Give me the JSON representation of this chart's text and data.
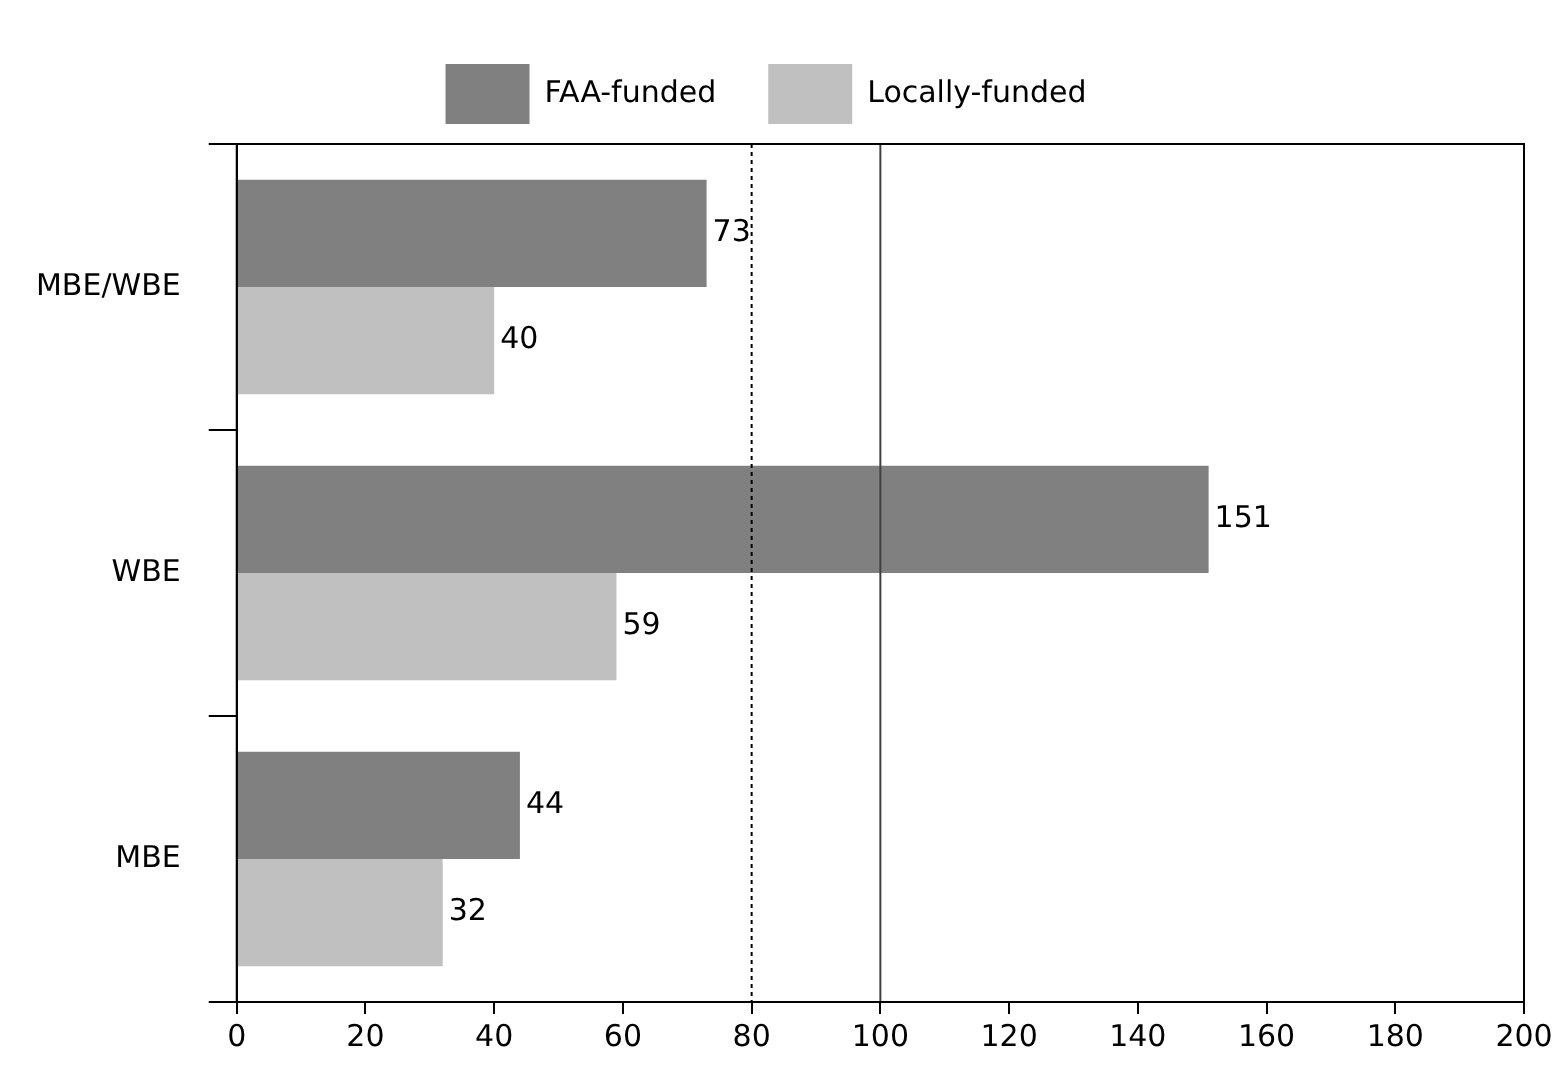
{
  "chart_data": {
    "type": "bar",
    "orientation": "horizontal",
    "categories": [
      "MBE/WBE",
      "WBE",
      "MBE"
    ],
    "series": [
      {
        "name": "FAA-funded",
        "color": "#808080",
        "values": [
          73,
          151,
          44
        ]
      },
      {
        "name": "Locally-funded",
        "color": "#c0c0c0",
        "values": [
          40,
          59,
          32
        ]
      }
    ],
    "xlim": [
      0,
      200
    ],
    "xticks": [
      0,
      20,
      40,
      60,
      80,
      100,
      120,
      140,
      160,
      180,
      200
    ],
    "ref_lines": [
      {
        "axis": "x",
        "value": 80,
        "line_style": "dotted",
        "color": "#000000"
      },
      {
        "axis": "x",
        "value": 100,
        "line_style": "solid",
        "color": "#404040"
      }
    ],
    "data_labels": true,
    "grid": false,
    "legend": "top"
  }
}
